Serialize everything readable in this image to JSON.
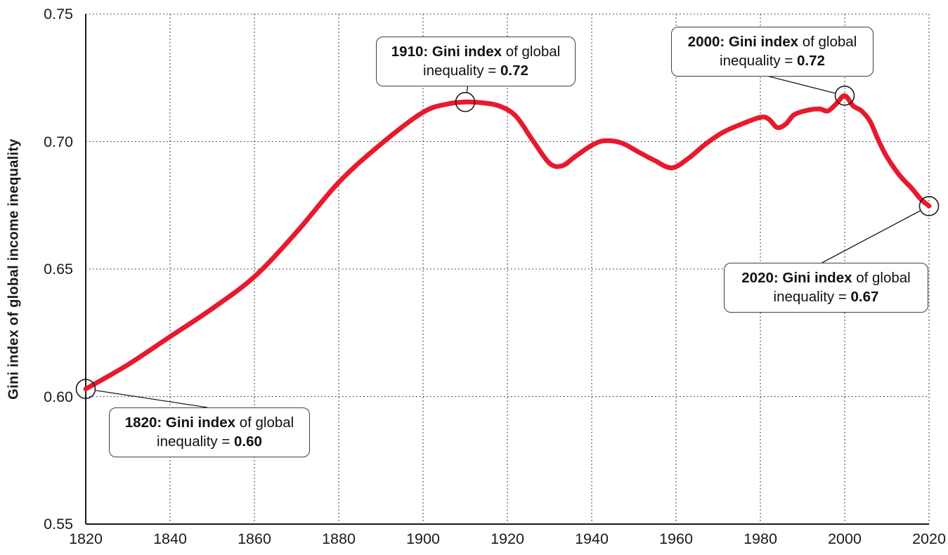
{
  "chart_data": {
    "type": "line",
    "title": "",
    "xlabel": "",
    "ylabel": "Gini index of global income inequality",
    "xlim": [
      1820,
      2020
    ],
    "ylim": [
      0.55,
      0.75
    ],
    "x_ticks": [
      1820,
      1840,
      1860,
      1880,
      1900,
      1920,
      1940,
      1960,
      1980,
      2000,
      2020
    ],
    "x_tick_labels": [
      "1820",
      "1840",
      "1860",
      "1880",
      "1900",
      "1920",
      "1940",
      "1960",
      "1980",
      "2000",
      "2020"
    ],
    "y_ticks": [
      0.55,
      0.6,
      0.65,
      0.7,
      0.75
    ],
    "y_tick_labels": [
      "0.55",
      "0.60",
      "0.65",
      "0.70",
      "0.75"
    ],
    "grid": "dotted horizontal and vertical gridlines at every tick",
    "legend": "none",
    "line_color": "#e8192d",
    "series": [
      {
        "name": "Gini index of global income inequality",
        "points": [
          [
            1820,
            0.603
          ],
          [
            1830,
            0.6125
          ],
          [
            1840,
            0.6235
          ],
          [
            1850,
            0.6345
          ],
          [
            1860,
            0.647
          ],
          [
            1870,
            0.6645
          ],
          [
            1880,
            0.684
          ],
          [
            1890,
            0.699
          ],
          [
            1900,
            0.7115
          ],
          [
            1906,
            0.7148
          ],
          [
            1910,
            0.7155
          ],
          [
            1914,
            0.7152
          ],
          [
            1918,
            0.714
          ],
          [
            1922,
            0.71
          ],
          [
            1926,
            0.7005
          ],
          [
            1930,
            0.6915
          ],
          [
            1933,
            0.6905
          ],
          [
            1936,
            0.694
          ],
          [
            1940,
            0.6985
          ],
          [
            1943,
            0.7003
          ],
          [
            1947,
            0.6995
          ],
          [
            1951,
            0.696
          ],
          [
            1955,
            0.6925
          ],
          [
            1959,
            0.6897
          ],
          [
            1963,
            0.6935
          ],
          [
            1967,
            0.699
          ],
          [
            1971,
            0.7035
          ],
          [
            1975,
            0.7065
          ],
          [
            1980,
            0.7095
          ],
          [
            1982,
            0.7088
          ],
          [
            1984,
            0.7055
          ],
          [
            1986,
            0.7068
          ],
          [
            1988,
            0.7105
          ],
          [
            1991,
            0.7122
          ],
          [
            1994,
            0.7128
          ],
          [
            1996,
            0.712
          ],
          [
            1998,
            0.7148
          ],
          [
            2000,
            0.718
          ],
          [
            2002,
            0.714
          ],
          [
            2004,
            0.712
          ],
          [
            2006,
            0.708
          ],
          [
            2008,
            0.7005
          ],
          [
            2010,
            0.694
          ],
          [
            2013,
            0.6868
          ],
          [
            2016,
            0.6815
          ],
          [
            2018,
            0.6775
          ],
          [
            2020,
            0.6747
          ]
        ]
      }
    ],
    "markers": [
      [
        1820,
        0.603
      ],
      [
        1910,
        0.7155
      ],
      [
        2000,
        0.718
      ],
      [
        2020,
        0.6747
      ]
    ]
  },
  "annotations": [
    {
      "bold_lead": "1820: Gini index",
      "mid": " of global inequality = ",
      "value": "0.60",
      "marker": [
        1820,
        0.603
      ],
      "leader_edge": "top",
      "leader_t": 0.49
    },
    {
      "bold_lead": "1910: Gini index",
      "mid": " of global inequality = ",
      "value": "0.72",
      "marker": [
        1910,
        0.7155
      ],
      "leader_edge": "bottom",
      "leader_t": 0.46
    },
    {
      "bold_lead": "2000: Gini index",
      "mid": " of global inequality = ",
      "value": "0.72",
      "marker": [
        2000,
        0.718
      ],
      "leader_edge": "bottom",
      "leader_t": 0.48
    },
    {
      "bold_lead": "2020: Gini index",
      "mid": " of global inequality = ",
      "value": "0.67",
      "marker": [
        2020,
        0.6747
      ],
      "leader_edge": "top",
      "leader_t": 0.48
    }
  ],
  "colors": {
    "line": "#e8192d",
    "axis": "#1a1a1a",
    "grid": "#2b2b2b",
    "annotation_border": "#3f3f3f",
    "text": "#1a1a1a"
  }
}
